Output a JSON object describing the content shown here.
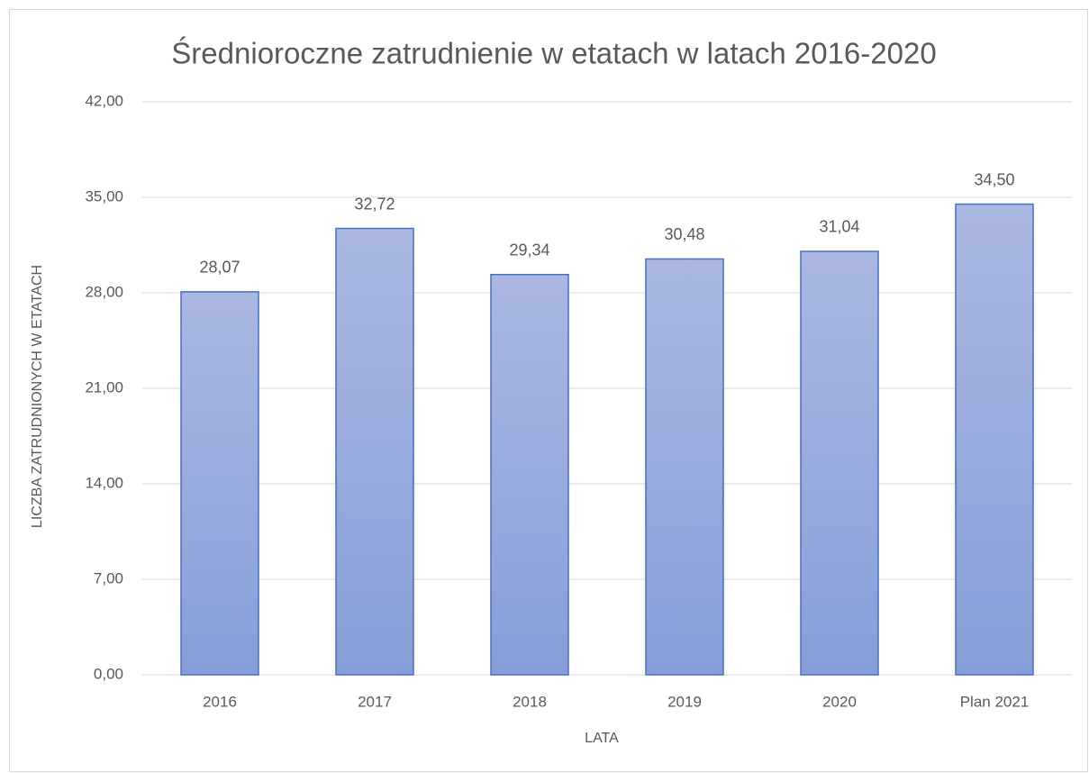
{
  "chart_data": {
    "type": "bar",
    "title": "Średnioroczne zatrudnienie w etatach w latach 2016-2020",
    "x_label": "LATA",
    "y_label": "LICZBA ZATRUDNIONYCH  W ETATACH",
    "categories": [
      "2016",
      "2017",
      "2018",
      "2019",
      "2020",
      "Plan 2021"
    ],
    "values": [
      28.07,
      32.72,
      29.34,
      30.48,
      31.04,
      34.5
    ],
    "value_labels": [
      "28,07",
      "32,72",
      "29,34",
      "30,48",
      "31,04",
      "34,50"
    ],
    "color": "#4472c4",
    "ylim": [
      0,
      42
    ],
    "yticks": [
      {
        "value": 0,
        "label": "0,00"
      },
      {
        "value": 7,
        "label": "7,00"
      },
      {
        "value": 14,
        "label": "14,00"
      },
      {
        "value": 21,
        "label": "21,00"
      },
      {
        "value": 28,
        "label": "28,00"
      },
      {
        "value": 35,
        "label": "35,00"
      },
      {
        "value": 42,
        "label": "42,00"
      }
    ],
    "grid": true
  }
}
